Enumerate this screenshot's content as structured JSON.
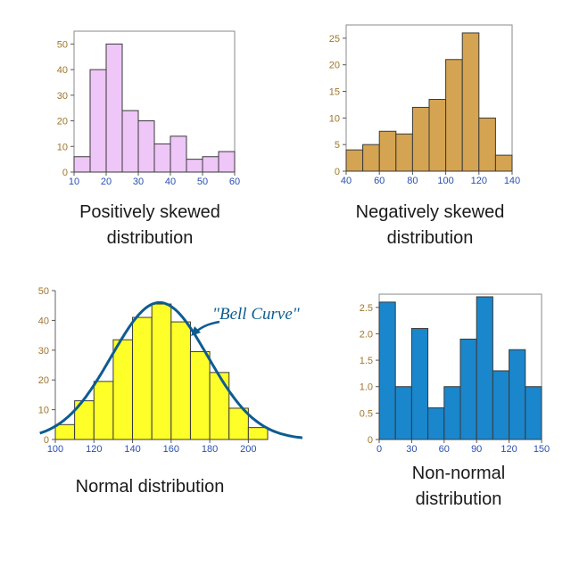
{
  "chart_data": [
    {
      "type": "bar",
      "caption": [
        "Positively skewed",
        "distribution"
      ],
      "bin_edges": [
        10,
        15,
        20,
        25,
        30,
        35,
        40,
        45,
        50,
        55,
        60
      ],
      "values": [
        6,
        40,
        50,
        24,
        20,
        11,
        14,
        5,
        6,
        8
      ],
      "xlim": [
        10,
        60
      ],
      "ylim": [
        0,
        55
      ],
      "x_ticks": [
        10,
        20,
        30,
        40,
        50,
        60
      ],
      "y_ticks": [
        0,
        10,
        20,
        30,
        40,
        50
      ],
      "grid": false,
      "bar_color": "#eec6f7",
      "x_tick_color": "#2a4fb0",
      "y_tick_color": "#a0752a"
    },
    {
      "type": "bar",
      "caption": [
        "Negatively skewed",
        "distribution"
      ],
      "bin_edges": [
        40,
        50,
        60,
        70,
        80,
        90,
        100,
        110,
        120,
        130,
        140
      ],
      "values": [
        4,
        5,
        7.5,
        7,
        12,
        13.5,
        21,
        26,
        10,
        3
      ],
      "xlim": [
        40,
        140
      ],
      "ylim": [
        0,
        27.5
      ],
      "x_ticks": [
        40,
        60,
        80,
        100,
        120,
        140
      ],
      "y_ticks": [
        0,
        5,
        10,
        15,
        20,
        25
      ],
      "grid": false,
      "bar_color": "#d4a452",
      "x_tick_color": "#2a4fb0",
      "y_tick_color": "#a0752a"
    },
    {
      "type": "bar",
      "caption": [
        "Normal distribution"
      ],
      "bin_edges": [
        100,
        110,
        120,
        130,
        140,
        150,
        160,
        170,
        180,
        190,
        200,
        210
      ],
      "values": [
        5,
        13,
        19.5,
        33.5,
        41,
        45.5,
        39.5,
        29.5,
        22.5,
        10.5,
        4
      ],
      "xlim": [
        100,
        210
      ],
      "ylim": [
        0,
        50
      ],
      "x_ticks": [
        100,
        120,
        140,
        160,
        180,
        200
      ],
      "y_ticks": [
        0,
        10,
        20,
        30,
        40,
        50
      ],
      "grid": false,
      "bar_color": "#fefe28",
      "x_tick_color": "#2a4fb0",
      "y_tick_color": "#a0752a",
      "curve": {
        "type": "normal",
        "mean": 154,
        "sd": 25,
        "peak": 46,
        "x_range": [
          92,
          228
        ],
        "color": "#0d5c91",
        "label": "\"Bell Curve\""
      }
    },
    {
      "type": "bar",
      "caption": [
        "Non-normal",
        "distribution"
      ],
      "bin_edges": [
        0,
        15,
        30,
        45,
        60,
        75,
        90,
        105,
        120,
        135,
        150
      ],
      "values": [
        2.6,
        1.0,
        2.1,
        0.6,
        1.0,
        1.9,
        2.7,
        1.3,
        1.7,
        1.0
      ],
      "xlim": [
        0,
        150
      ],
      "ylim": [
        0,
        2.75
      ],
      "x_ticks": [
        0,
        30,
        60,
        90,
        120,
        150
      ],
      "y_ticks": [
        0,
        0.5,
        1.0,
        1.5,
        2.0,
        2.5
      ],
      "y_tick_labels": [
        "0",
        "0.5",
        "1.0",
        "1.5",
        "2.0",
        "2.5"
      ],
      "grid": false,
      "bar_color": "#1a86cc",
      "x_tick_color": "#2a4fb0",
      "y_tick_color": "#a0752a"
    }
  ]
}
